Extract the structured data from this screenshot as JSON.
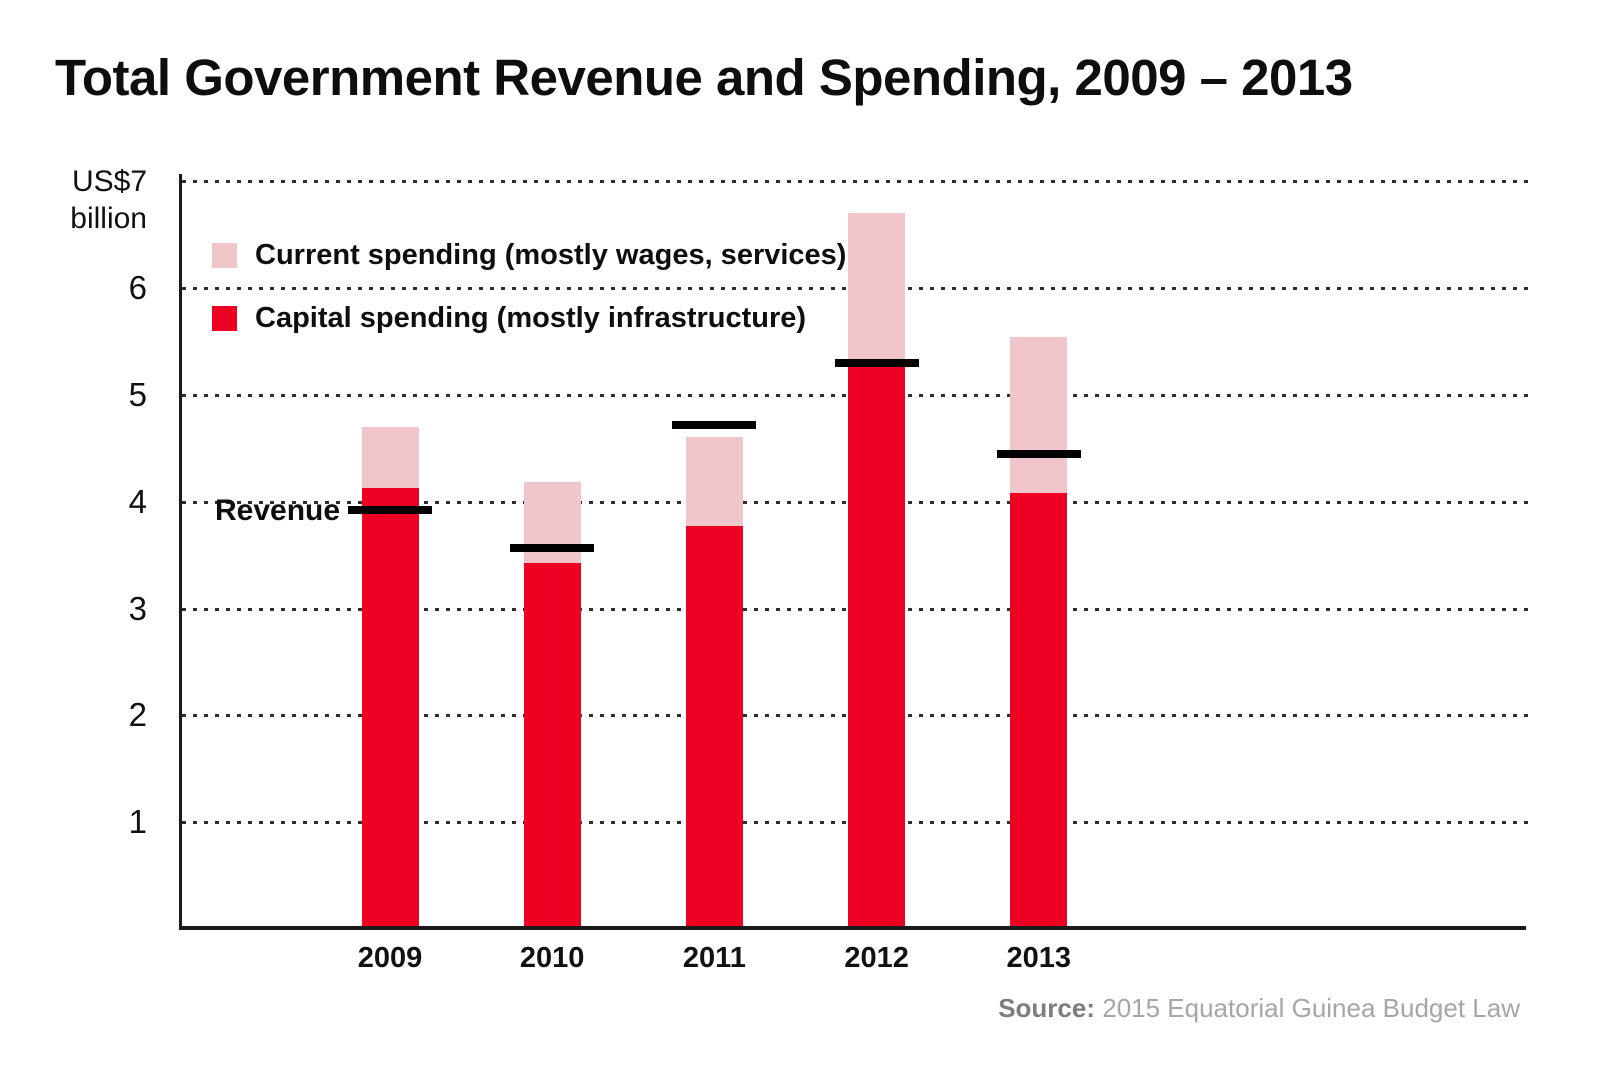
{
  "title": "Total Government Revenue and Spending, 2009 – 2013",
  "y_axis": {
    "unit_line1": "US$7",
    "unit_line2": "billion"
  },
  "legend": {
    "current": {
      "label": "Current spending (mostly wages, services)",
      "color": "#f0c6ca"
    },
    "capital": {
      "label": "Capital spending (mostly infrastructure)",
      "color": "#ee0023"
    }
  },
  "revenue_label": "Revenue",
  "source": {
    "prefix": "Source:",
    "text": "2015 Equatorial Guinea Budget Law"
  },
  "chart_data": {
    "type": "bar",
    "stacked": true,
    "title": "Total Government Revenue and Spending, 2009 – 2013",
    "categories": [
      "2009",
      "2010",
      "2011",
      "2012",
      "2013"
    ],
    "series": [
      {
        "name": "Capital spending (mostly infrastructure)",
        "color": "#ee0023",
        "values": [
          4.13,
          3.43,
          3.77,
          5.28,
          4.08
        ]
      },
      {
        "name": "Current spending (mostly wages, services)",
        "color": "#f0c6ca",
        "values": [
          0.57,
          0.76,
          0.84,
          1.42,
          1.46
        ]
      }
    ],
    "totals": [
      4.7,
      4.19,
      4.61,
      6.7,
      5.54
    ],
    "revenue_line": {
      "name": "Revenue",
      "color": "#000000",
      "values": [
        3.92,
        3.57,
        4.72,
        5.3,
        4.45
      ]
    },
    "xlabel": "",
    "ylabel": "US$ billion",
    "ylim": [
      0,
      7
    ],
    "yticks": [
      1,
      2,
      3,
      4,
      5,
      6,
      7
    ],
    "grid": "dotted horizontal",
    "legend_position": "top-left inside plot"
  }
}
